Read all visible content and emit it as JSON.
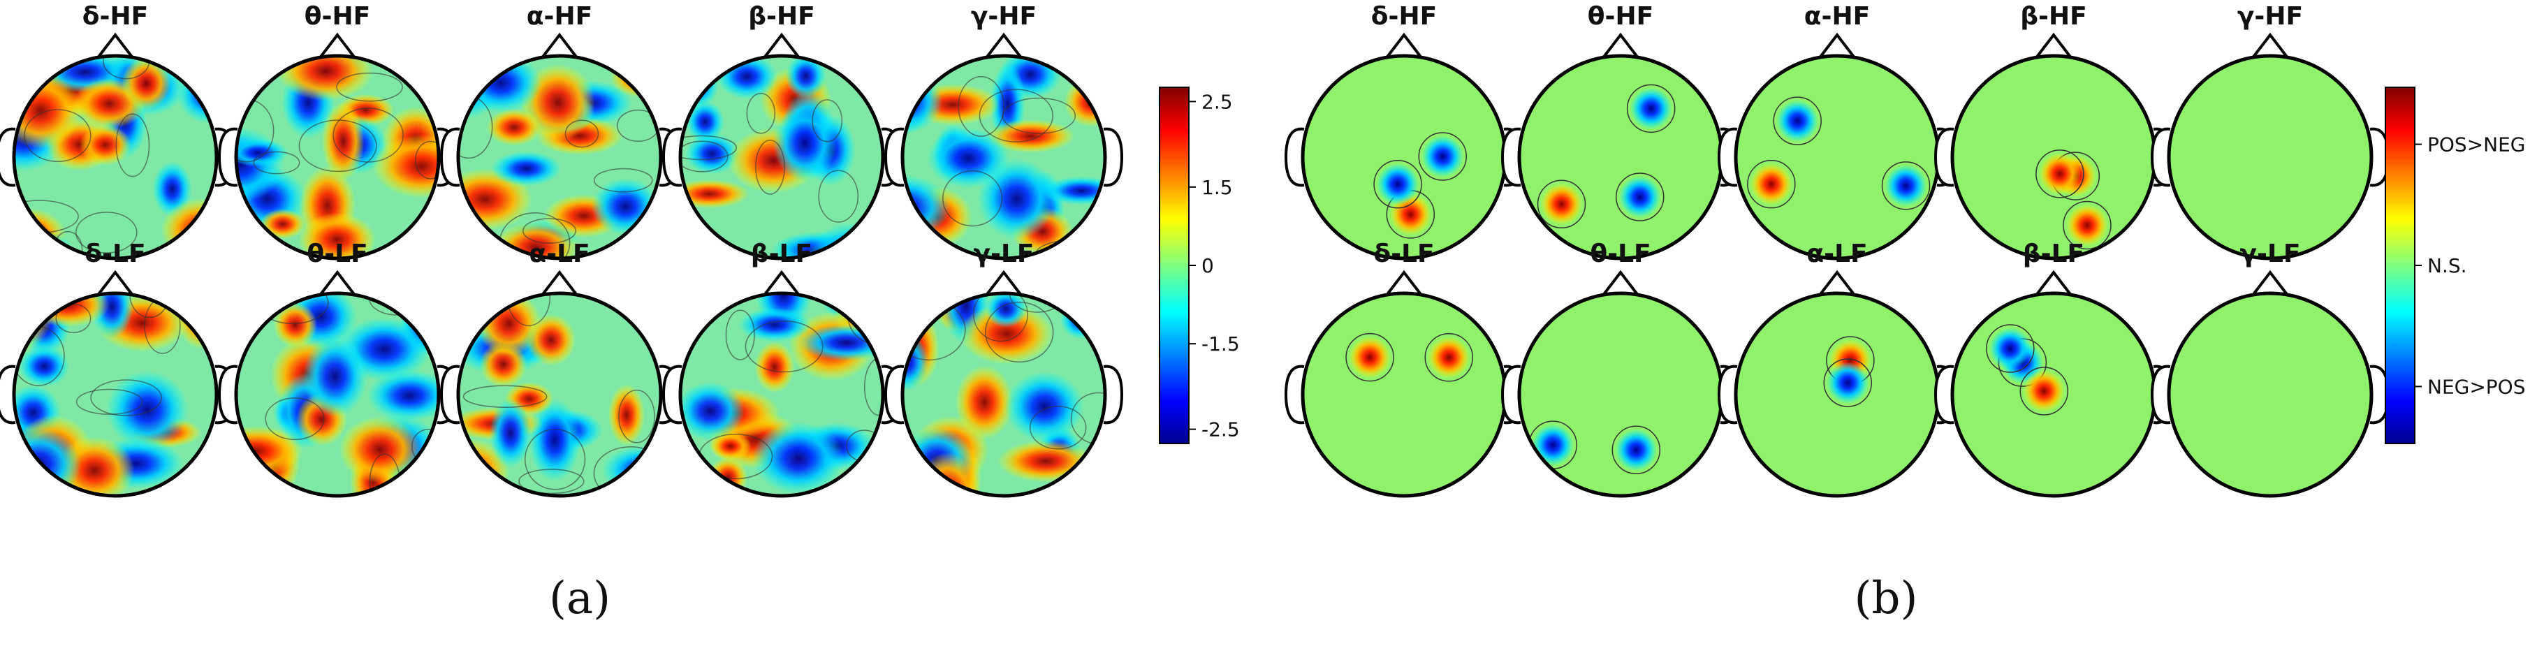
{
  "figure": {
    "panels": [
      {
        "id": "a",
        "caption": "(a)",
        "rows": [
          [
            "δ-HF",
            "θ-HF",
            "α-HF",
            "β-HF",
            "γ-HF"
          ],
          [
            "δ-LF",
            "θ-LF",
            "α-LF",
            "β-LF",
            "γ-LF"
          ]
        ],
        "colorbar": {
          "type": "numeric",
          "ticks": [
            "2.5",
            "1.5",
            "0",
            "-1.5",
            "-2.5"
          ]
        }
      },
      {
        "id": "b",
        "caption": "(b)",
        "rows": [
          [
            "δ-HF",
            "θ-HF",
            "α-HF",
            "β-HF",
            "γ-HF"
          ],
          [
            "δ-LF",
            "θ-LF",
            "α-LF",
            "β-LF",
            "γ-LF"
          ]
        ],
        "colorbar": {
          "type": "categorical",
          "ticks": [
            "POS>NEG",
            "N.S.",
            "NEG>POS"
          ]
        }
      }
    ],
    "colors": {
      "colormap": [
        "#00008f",
        "#0000ff",
        "#00ffff",
        "#ffff00",
        "#ff0000",
        "#800000"
      ],
      "ns_green": "#8ff26a",
      "outline": "#000000"
    }
  }
}
